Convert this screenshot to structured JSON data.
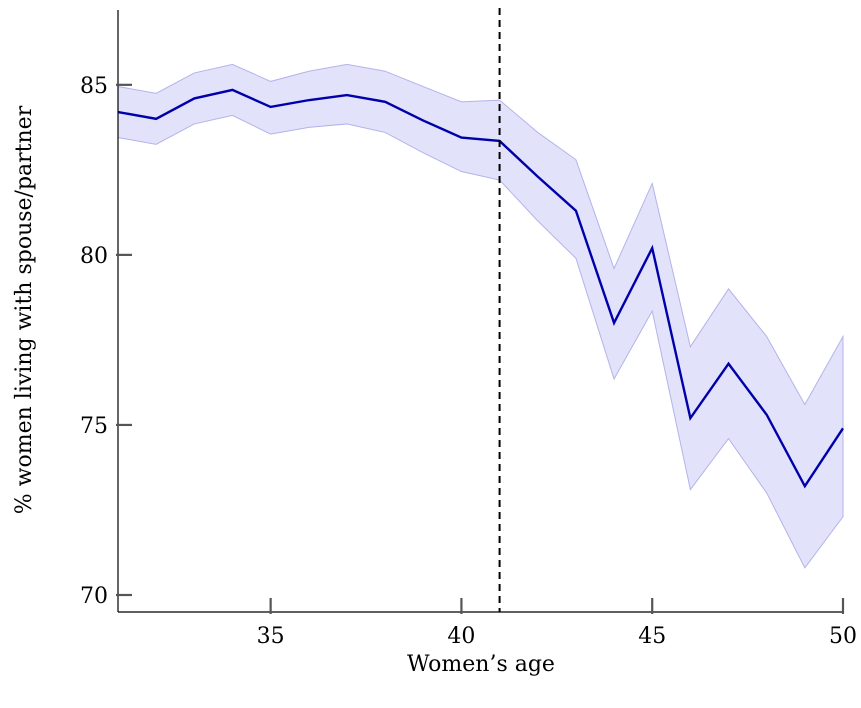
{
  "chart_data": {
    "type": "line",
    "title": "",
    "xlabel": "Women’s age",
    "ylabel": "% women living with spouse/partner",
    "xlim": [
      31,
      50
    ],
    "ylim": [
      69.5,
      87.2
    ],
    "x_ticks": [
      35,
      40,
      45,
      50
    ],
    "y_ticks": [
      70,
      75,
      80,
      85
    ],
    "grid": false,
    "legend": "none",
    "reference_line": {
      "x": 41,
      "style": "dashed"
    },
    "series": [
      {
        "x": [
          31,
          32,
          33,
          34,
          35,
          36,
          37,
          38,
          39,
          40,
          41,
          42,
          43,
          44,
          45,
          46,
          47,
          48,
          49,
          50
        ],
        "values": [
          84.2,
          84.0,
          84.6,
          84.85,
          84.35,
          84.55,
          84.7,
          84.5,
          83.95,
          83.45,
          83.35,
          82.3,
          81.3,
          78.0,
          80.2,
          75.2,
          76.8,
          75.3,
          73.2,
          74.9
        ],
        "ci_upper": [
          84.95,
          84.75,
          85.35,
          85.6,
          85.1,
          85.4,
          85.6,
          85.4,
          84.95,
          84.5,
          84.55,
          83.6,
          82.8,
          79.6,
          82.1,
          77.3,
          79.0,
          77.6,
          75.6,
          77.6
        ],
        "ci_lower": [
          83.45,
          83.25,
          83.85,
          84.1,
          83.55,
          83.75,
          83.85,
          83.6,
          83.0,
          82.45,
          82.2,
          81.0,
          79.9,
          76.35,
          78.35,
          73.1,
          74.6,
          73.0,
          70.8,
          72.3
        ]
      }
    ],
    "colors": {
      "line": "#0000aa",
      "band_fill": "#e2e2fb",
      "band_edge": "#b3b3ea",
      "reference": "#000000"
    }
  }
}
